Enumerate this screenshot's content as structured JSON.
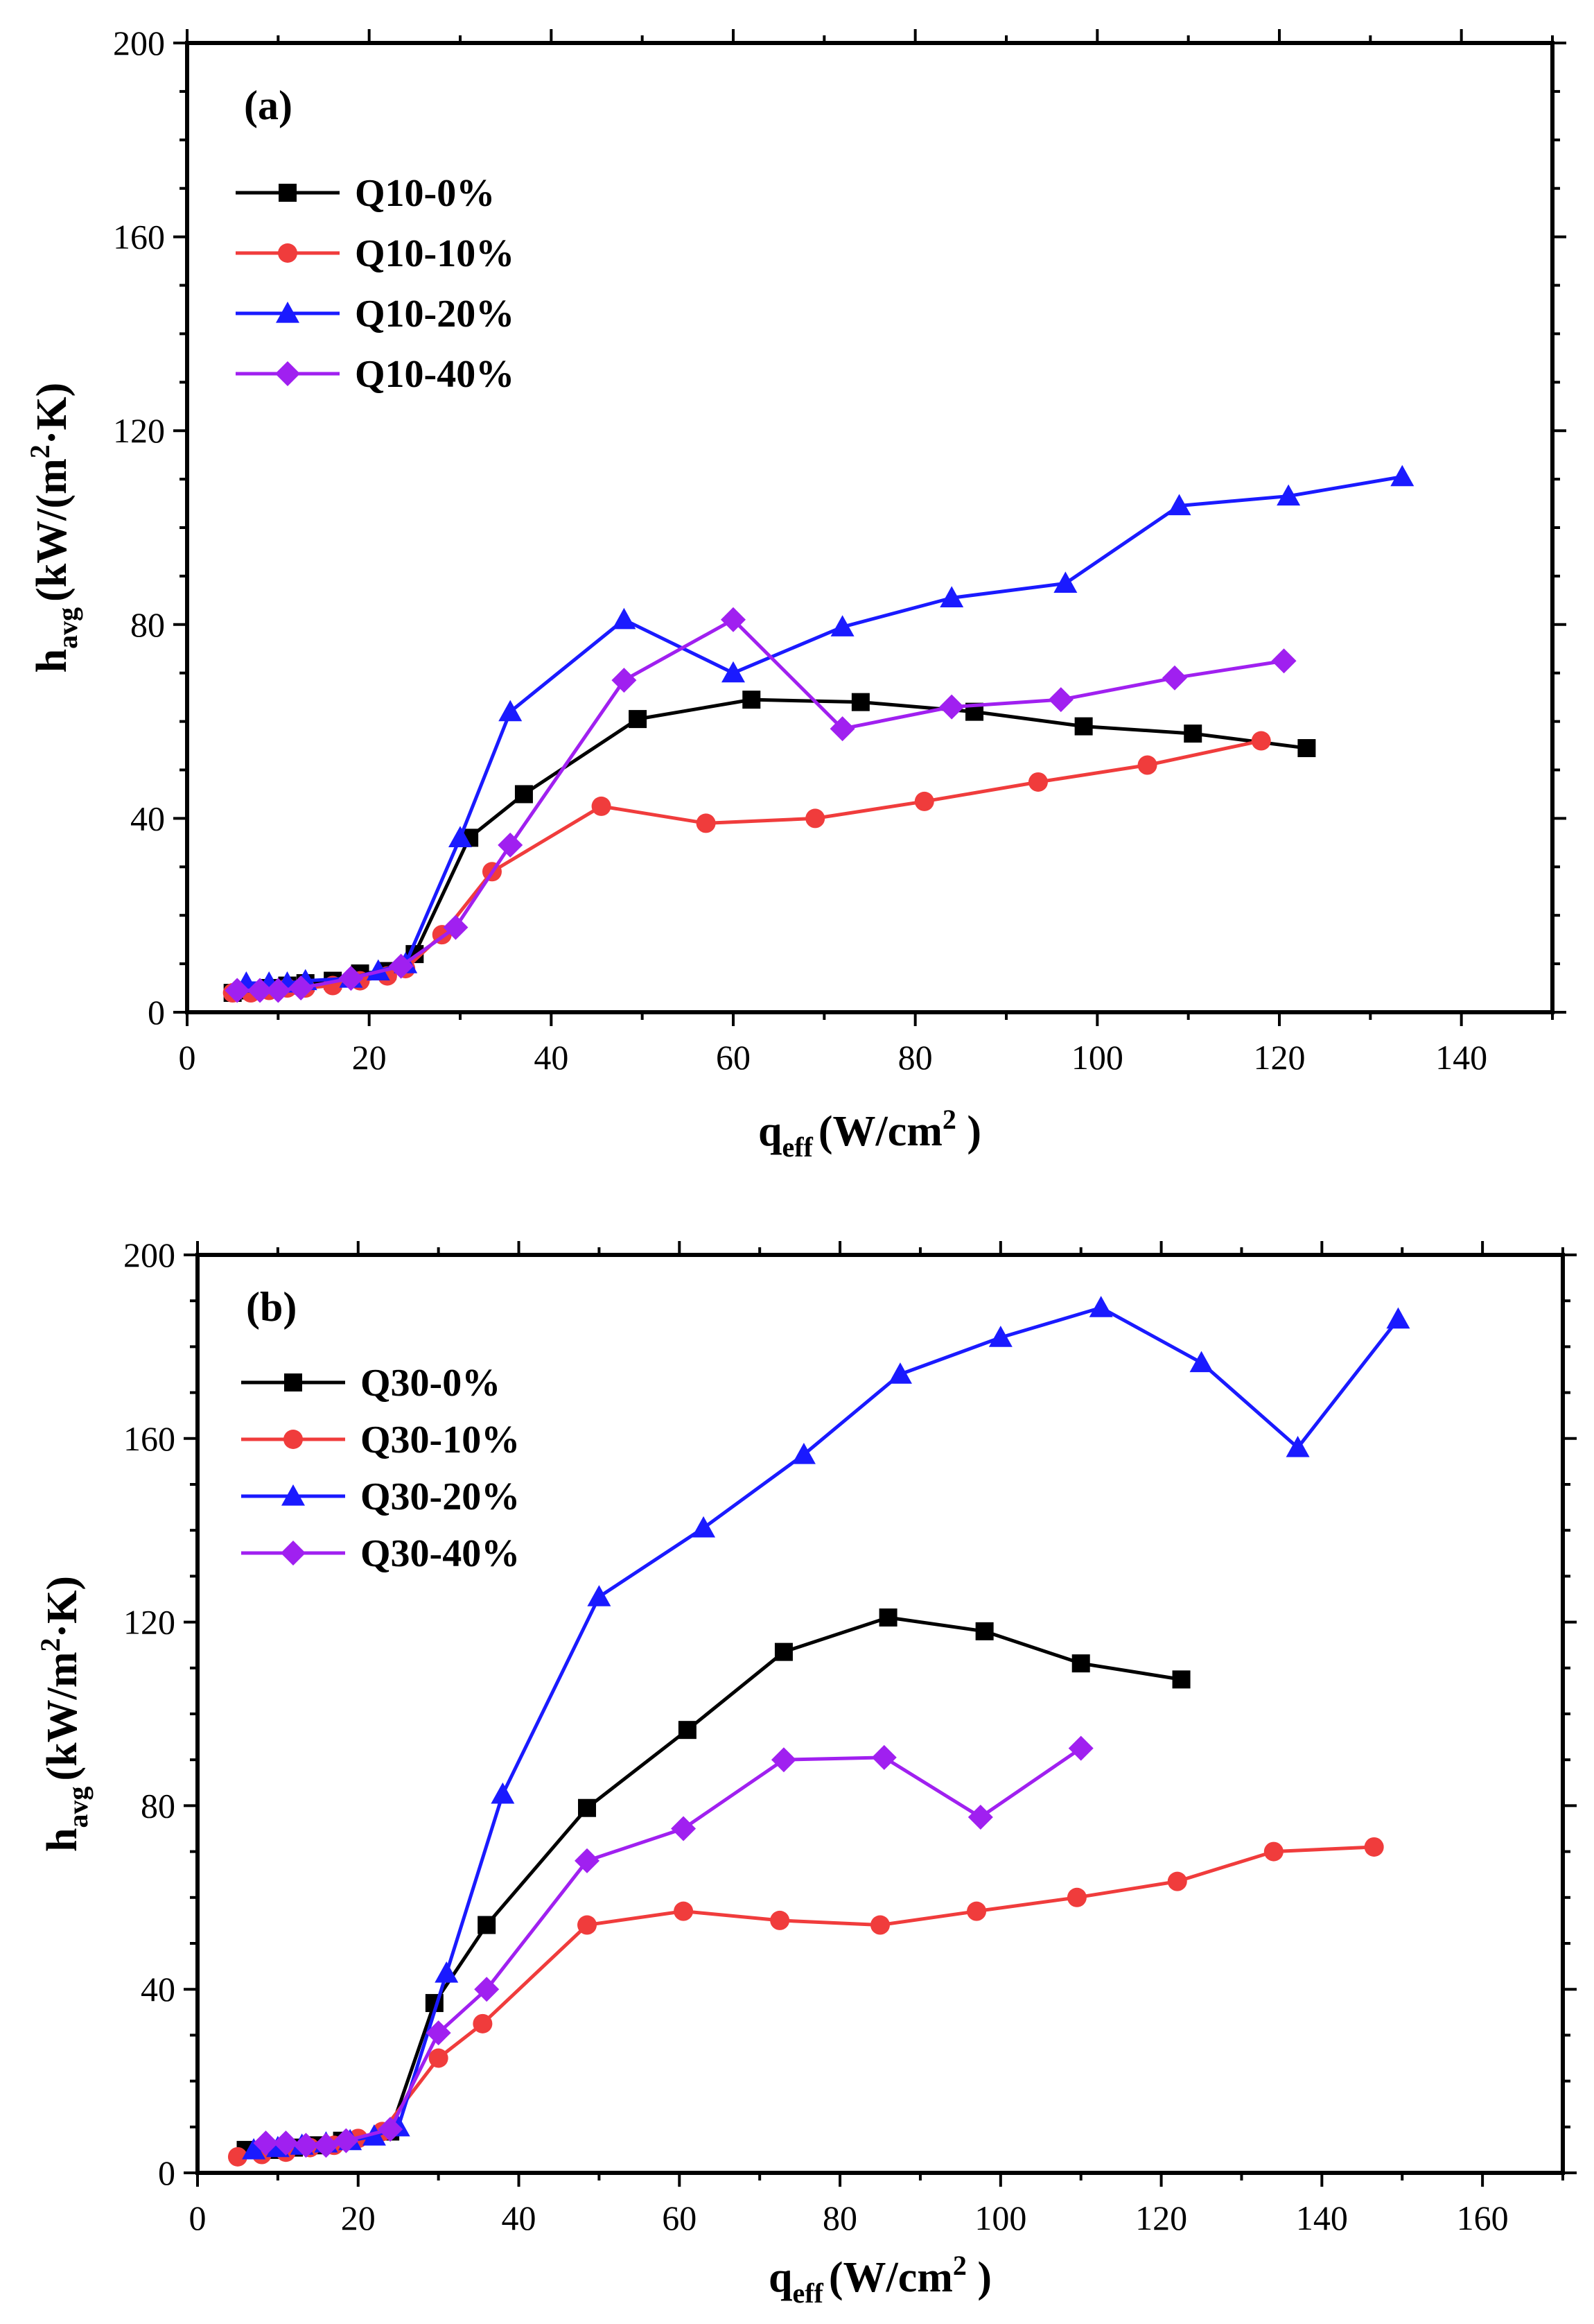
{
  "chart_data": [
    {
      "type": "line",
      "panel_label": "(a)",
      "xlabel": {
        "main": "q",
        "sub": "eff",
        "unit_pre": "(W/cm",
        "unit_sup": "2",
        "unit_post": " )"
      },
      "ylabel": {
        "main": "h",
        "sub": "avg",
        "unit_pre": "(kW/(m",
        "unit_sup": "2",
        "unit_post": "·K)"
      },
      "xlim": [
        0,
        150
      ],
      "ylim": [
        0,
        200
      ],
      "xticks": [
        0,
        20,
        40,
        60,
        80,
        100,
        120,
        140
      ],
      "yticks": [
        0,
        40,
        80,
        120,
        160,
        200
      ],
      "legend_position": "upper-left",
      "series": [
        {
          "name": "Q10-0%",
          "color": "#000000",
          "marker": "square",
          "x": [
            5,
            7,
            9,
            11,
            13,
            16,
            19,
            22,
            25,
            31,
            37,
            49.5,
            62,
            74,
            86.5,
            98.5,
            110.5,
            123
          ],
          "y": [
            4,
            4.5,
            5,
            5.5,
            6,
            6.5,
            8,
            8.5,
            12,
            36,
            45,
            60.5,
            64.5,
            64,
            62,
            59,
            57.5,
            54.5
          ]
        },
        {
          "name": "Q10-10%",
          "color": "#f03c3c",
          "marker": "circle",
          "x": [
            5,
            7,
            9,
            11,
            13,
            16,
            19,
            22,
            24,
            28,
            33.5,
            45.5,
            57,
            69,
            81,
            93.5,
            105.5,
            118
          ],
          "y": [
            4,
            4,
            4.5,
            5,
            5,
            5.5,
            6.5,
            7.5,
            9,
            16,
            29,
            42.5,
            39,
            40,
            43.5,
            47.5,
            51,
            56
          ]
        },
        {
          "name": "Q10-20%",
          "color": "#1a1aff",
          "marker": "triangle",
          "x": [
            6.5,
            9,
            11,
            13,
            18,
            21,
            24,
            30,
            35.5,
            48,
            60,
            72,
            84,
            96.5,
            109,
            121,
            133.5
          ],
          "y": [
            6,
            6,
            6,
            6.5,
            7,
            8.5,
            10,
            36,
            62,
            81,
            70,
            79.5,
            85.5,
            88.5,
            104.5,
            106.5,
            110.5
          ]
        },
        {
          "name": "Q10-40%",
          "color": "#a020f0",
          "marker": "diamond",
          "x": [
            5.5,
            8,
            10,
            12.5,
            18,
            23.5,
            29.5,
            35.5,
            48,
            60,
            72,
            84,
            96,
            108.5,
            120.5
          ],
          "y": [
            4.5,
            4.5,
            4.5,
            5,
            7,
            9.5,
            17.5,
            34.5,
            68.5,
            81,
            58.5,
            63,
            64.5,
            69,
            72.5
          ]
        }
      ]
    },
    {
      "type": "line",
      "panel_label": "(b)",
      "xlabel": {
        "main": "q",
        "sub": "eff",
        "unit_pre": "(W/cm",
        "unit_sup": "2",
        "unit_post": " )"
      },
      "ylabel": {
        "main": "h",
        "sub": "avg",
        "unit_pre": "(kW/m",
        "unit_sup": "2",
        "unit_post": "·K)"
      },
      "xlim": [
        0,
        170
      ],
      "ylim": [
        0,
        200
      ],
      "xticks": [
        0,
        20,
        40,
        60,
        80,
        100,
        120,
        140,
        160
      ],
      "yticks": [
        0,
        40,
        80,
        120,
        160,
        200
      ],
      "legend_position": "upper-left",
      "series": [
        {
          "name": "Q30-0%",
          "color": "#000000",
          "marker": "square",
          "x": [
            6,
            9,
            12,
            15,
            18,
            24,
            29.5,
            36,
            48.5,
            61,
            73,
            86,
            98,
            110,
            122.5
          ],
          "y": [
            5,
            5,
            5.5,
            6,
            7,
            9,
            37,
            54,
            79.5,
            96.5,
            113.5,
            121,
            118,
            111,
            107.5
          ]
        },
        {
          "name": "Q30-10%",
          "color": "#f03c3c",
          "marker": "circle",
          "x": [
            5,
            8,
            11,
            14,
            17,
            20,
            23,
            30,
            35.5,
            48.5,
            60.5,
            72.5,
            85,
            97,
            109.5,
            122,
            134,
            146.5
          ],
          "y": [
            3.5,
            4,
            4.5,
            5.5,
            6,
            7.5,
            9,
            25,
            32.5,
            54,
            57,
            55,
            54,
            57,
            60,
            63.5,
            70,
            71
          ]
        },
        {
          "name": "Q30-20%",
          "color": "#1a1aff",
          "marker": "triangle",
          "x": [
            7,
            10,
            13,
            16,
            19,
            22,
            25,
            31,
            38,
            50,
            63,
            75.5,
            87.5,
            100,
            112.5,
            125,
            137,
            149.5
          ],
          "y": [
            5,
            5.5,
            6,
            6.5,
            7,
            8,
            10,
            43.5,
            82.5,
            125.5,
            140.5,
            156.5,
            174,
            182,
            188.5,
            176.5,
            158,
            186
          ]
        },
        {
          "name": "Q30-40%",
          "color": "#a020f0",
          "marker": "diamond",
          "x": [
            8.5,
            11,
            13.5,
            16,
            18.5,
            24,
            30,
            36,
            48.5,
            60.5,
            73,
            85.5,
            97.5,
            110
          ],
          "y": [
            6.5,
            6.5,
            6,
            6,
            7,
            9.5,
            30.5,
            40,
            68,
            75,
            90,
            90.5,
            77.5,
            92.5
          ]
        }
      ]
    }
  ]
}
